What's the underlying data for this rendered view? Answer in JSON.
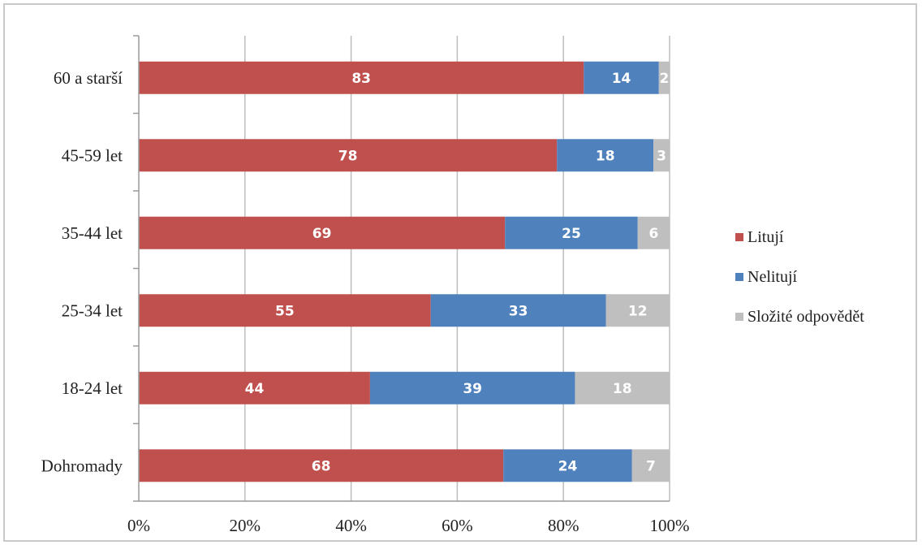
{
  "chart_data": {
    "type": "bar",
    "orientation": "horizontal",
    "stacked": true,
    "categories": [
      "Dohromady",
      "18-24 let",
      "25-34 let",
      "35-44 let",
      "45-59 let",
      "60 a starší"
    ],
    "series": [
      {
        "name": "Litují",
        "color": "#c0504d",
        "values": [
          68,
          44,
          55,
          69,
          78,
          83
        ]
      },
      {
        "name": "Nelitují",
        "color": "#4f81bd",
        "values": [
          24,
          39,
          33,
          25,
          18,
          14
        ]
      },
      {
        "name": "Složité odpovědět",
        "color": "#bfbfbf",
        "values": [
          7,
          18,
          12,
          6,
          3,
          2
        ]
      }
    ],
    "xlim": [
      0,
      100
    ],
    "xticks": [
      "0%",
      "20%",
      "40%",
      "60%",
      "80%",
      "100%"
    ],
    "grid": true,
    "legend_position": "right",
    "data_labels": true
  }
}
